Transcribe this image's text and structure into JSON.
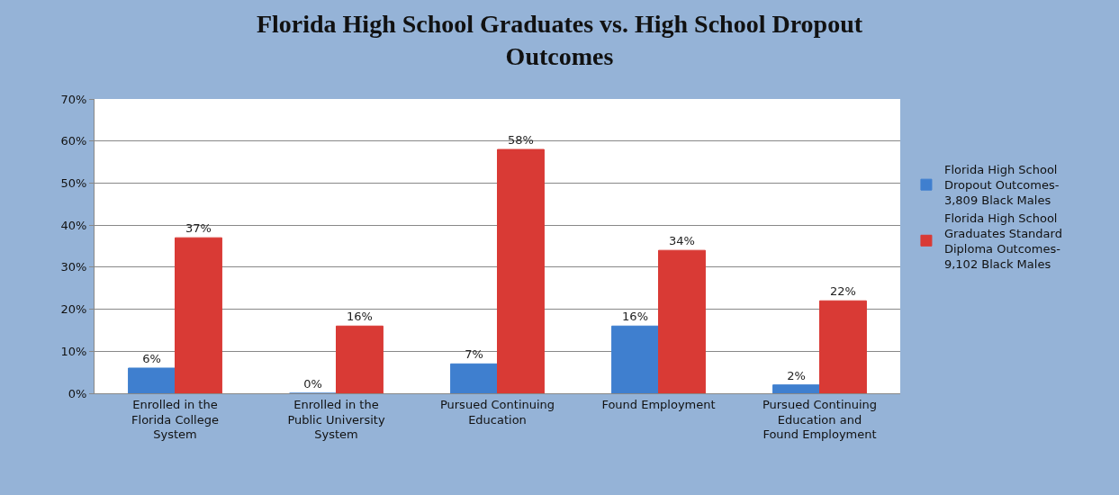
{
  "chart_data": {
    "type": "bar",
    "title": "Florida High School Graduates vs. High School Dropout Outcomes",
    "categories": [
      "Enrolled in the Florida College System",
      "Enrolled in the Public University System",
      "Pursued Continuing Education",
      "Found Employment",
      "Pursued Continuing Education and Found Employment"
    ],
    "series": [
      {
        "name": "Florida High School Dropout Outcomes- 3,809 Black Males",
        "color": "#3f7fcf",
        "values": [
          6,
          0,
          7,
          16,
          2
        ],
        "value_labels": [
          "6%",
          "0%",
          "7%",
          "16%",
          "2%"
        ]
      },
      {
        "name": "Florida High School Graduates Standard Diploma Outcomes- 9,102 Black Males",
        "color": "#d93a35",
        "values": [
          37,
          16,
          58,
          34,
          22
        ],
        "value_labels": [
          "37%",
          "16%",
          "58%",
          "34%",
          "22%"
        ]
      }
    ],
    "ylim": [
      0,
      70
    ],
    "yticks": [
      {
        "value": 0,
        "label": "0%"
      },
      {
        "value": 10,
        "label": "10%"
      },
      {
        "value": 20,
        "label": "20%"
      },
      {
        "value": 30,
        "label": "30%"
      },
      {
        "value": 40,
        "label": "40%"
      },
      {
        "value": 50,
        "label": "50%"
      },
      {
        "value": 60,
        "label": "60%"
      },
      {
        "value": 70,
        "label": "70%"
      }
    ],
    "grid": "y",
    "legend": "right"
  }
}
